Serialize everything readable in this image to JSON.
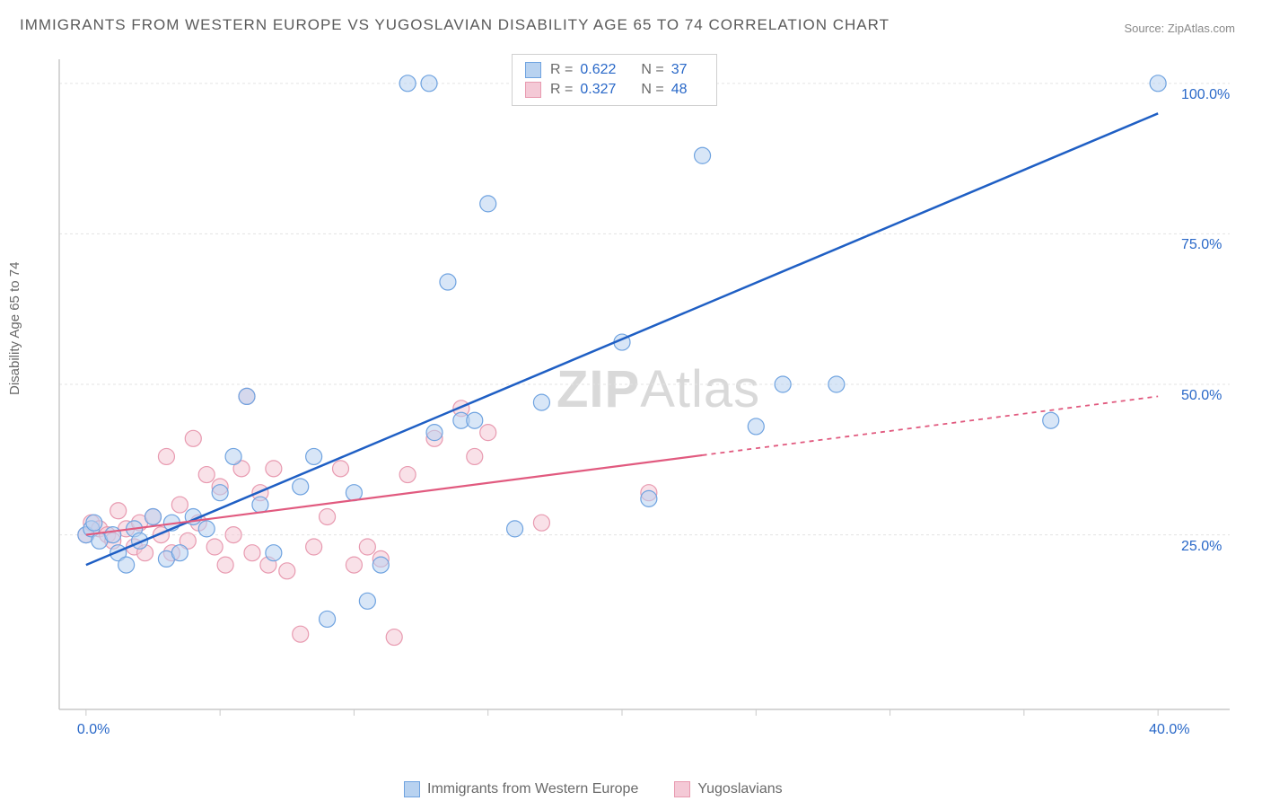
{
  "title": "IMMIGRANTS FROM WESTERN EUROPE VS YUGOSLAVIAN DISABILITY AGE 65 TO 74 CORRELATION CHART",
  "source": "Source: ZipAtlas.com",
  "ylabel": "Disability Age 65 to 74",
  "watermark_a": "ZIP",
  "watermark_b": "Atlas",
  "chart": {
    "type": "scatter",
    "xlim": [
      -1,
      41
    ],
    "ylim": [
      -4,
      104
    ],
    "x_ticks": [
      0,
      40
    ],
    "x_tick_labels": [
      "0.0%",
      "40.0%"
    ],
    "y_ticks": [
      25,
      50,
      75,
      100
    ],
    "y_tick_labels": [
      "25.0%",
      "50.0%",
      "75.0%",
      "100.0%"
    ],
    "grid_color": "#e3e3e3",
    "axis_color": "#c9c9c9",
    "background_color": "#ffffff",
    "marker_radius": 9,
    "marker_opacity": 0.55,
    "series": [
      {
        "name": "Immigrants from Western Europe",
        "color": "#6fa3e0",
        "fill": "#b8d2f0",
        "line_color": "#1f5fc4",
        "r": 0.622,
        "n": 37,
        "trend": {
          "x1": 0,
          "y1": 20,
          "x2": 40,
          "y2": 95,
          "dashed_from_x": null
        },
        "points": [
          [
            0,
            25
          ],
          [
            0.2,
            26
          ],
          [
            0.3,
            27
          ],
          [
            0.5,
            24
          ],
          [
            1,
            25
          ],
          [
            1.2,
            22
          ],
          [
            1.5,
            20
          ],
          [
            1.8,
            26
          ],
          [
            2,
            24
          ],
          [
            2.5,
            28
          ],
          [
            3,
            21
          ],
          [
            3.2,
            27
          ],
          [
            3.5,
            22
          ],
          [
            4,
            28
          ],
          [
            4.5,
            26
          ],
          [
            5,
            32
          ],
          [
            5.5,
            38
          ],
          [
            6,
            48
          ],
          [
            6.5,
            30
          ],
          [
            7,
            22
          ],
          [
            8,
            33
          ],
          [
            8.5,
            38
          ],
          [
            9,
            11
          ],
          [
            10,
            32
          ],
          [
            10.5,
            14
          ],
          [
            11,
            20
          ],
          [
            12,
            100
          ],
          [
            12.8,
            100
          ],
          [
            13,
            42
          ],
          [
            13.5,
            67
          ],
          [
            14,
            44
          ],
          [
            14.5,
            44
          ],
          [
            15,
            80
          ],
          [
            16,
            26
          ],
          [
            17,
            47
          ],
          [
            20,
            57
          ],
          [
            21,
            31
          ],
          [
            23,
            88
          ],
          [
            25,
            43
          ],
          [
            26,
            50
          ],
          [
            28,
            50
          ],
          [
            36,
            44
          ],
          [
            40,
            100
          ]
        ]
      },
      {
        "name": "Yugoslavians",
        "color": "#e89ab0",
        "fill": "#f4c9d6",
        "line_color": "#e15a7f",
        "r": 0.327,
        "n": 48,
        "trend": {
          "x1": 0,
          "y1": 25,
          "x2": 40,
          "y2": 48,
          "dashed_from_x": 23
        },
        "points": [
          [
            0,
            25
          ],
          [
            0.2,
            27
          ],
          [
            0.5,
            26
          ],
          [
            0.8,
            25
          ],
          [
            1,
            24
          ],
          [
            1.2,
            29
          ],
          [
            1.5,
            26
          ],
          [
            1.8,
            23
          ],
          [
            2,
            27
          ],
          [
            2.2,
            22
          ],
          [
            2.5,
            28
          ],
          [
            2.8,
            25
          ],
          [
            3,
            38
          ],
          [
            3.2,
            22
          ],
          [
            3.5,
            30
          ],
          [
            3.8,
            24
          ],
          [
            4,
            41
          ],
          [
            4.2,
            27
          ],
          [
            4.5,
            35
          ],
          [
            4.8,
            23
          ],
          [
            5,
            33
          ],
          [
            5.2,
            20
          ],
          [
            5.5,
            25
          ],
          [
            5.8,
            36
          ],
          [
            6,
            48
          ],
          [
            6.2,
            22
          ],
          [
            6.5,
            32
          ],
          [
            6.8,
            20
          ],
          [
            7,
            36
          ],
          [
            7.5,
            19
          ],
          [
            8,
            8.5
          ],
          [
            8.5,
            23
          ],
          [
            9,
            28
          ],
          [
            9.5,
            36
          ],
          [
            10,
            20
          ],
          [
            10.5,
            23
          ],
          [
            11,
            21
          ],
          [
            11.5,
            8
          ],
          [
            12,
            35
          ],
          [
            13,
            41
          ],
          [
            14,
            46
          ],
          [
            14.5,
            38
          ],
          [
            15,
            42
          ],
          [
            17,
            27
          ],
          [
            21,
            32
          ]
        ]
      }
    ]
  },
  "legend_top": [
    {
      "swatch_fill": "#b8d2f0",
      "swatch_border": "#6fa3e0",
      "r": "0.622",
      "n": "37"
    },
    {
      "swatch_fill": "#f4c9d6",
      "swatch_border": "#e89ab0",
      "r": "0.327",
      "n": "48"
    }
  ],
  "legend_bottom": [
    {
      "swatch_fill": "#b8d2f0",
      "swatch_border": "#6fa3e0",
      "label": "Immigrants from Western Europe"
    },
    {
      "swatch_fill": "#f4c9d6",
      "swatch_border": "#e89ab0",
      "label": "Yugoslavians"
    }
  ]
}
